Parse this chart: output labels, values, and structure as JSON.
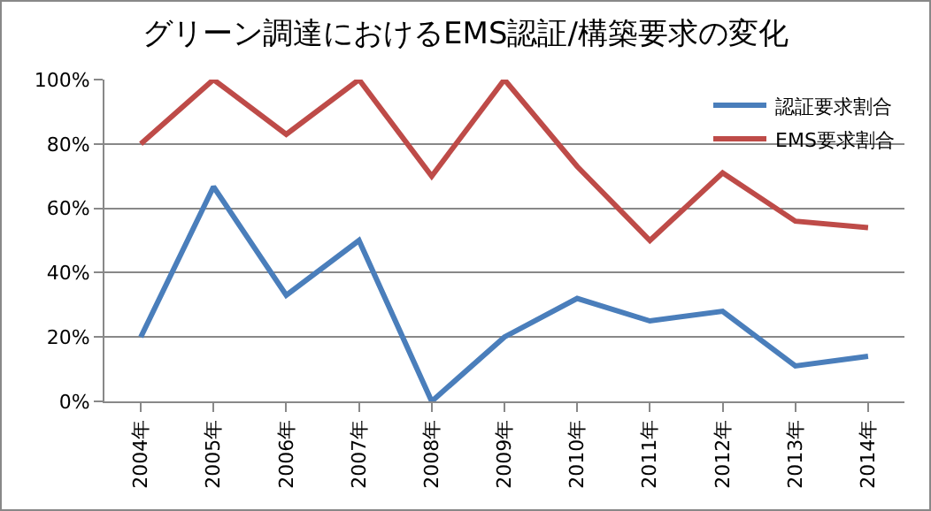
{
  "chart_data": {
    "type": "line",
    "title": "グリーン調達におけるEMS認証/構築要求の変化",
    "categories": [
      "2004年",
      "2005年",
      "2006年",
      "2007年",
      "2008年",
      "2009年",
      "2010年",
      "2011年",
      "2012年",
      "2013年",
      "2014年"
    ],
    "series": [
      {
        "name": "認証要求割合",
        "color": "#4a7ebb",
        "values": [
          20,
          66.7,
          33,
          50,
          0,
          20,
          32,
          25,
          28,
          11,
          14
        ]
      },
      {
        "name": "EMS要求割合",
        "color": "#be4b48",
        "values": [
          80,
          100,
          83,
          100,
          70,
          100,
          73,
          50,
          71,
          56,
          54
        ]
      }
    ],
    "ylim": [
      0,
      100
    ],
    "yticks": [
      {
        "value": 0,
        "label": "0%"
      },
      {
        "value": 20,
        "label": "20%"
      },
      {
        "value": 40,
        "label": "40%"
      },
      {
        "value": 60,
        "label": "60%"
      },
      {
        "value": 80,
        "label": "80%"
      },
      {
        "value": 100,
        "label": "100%"
      }
    ],
    "grid": "y",
    "legend": "top right",
    "marker": "none",
    "line_style": "solid"
  }
}
